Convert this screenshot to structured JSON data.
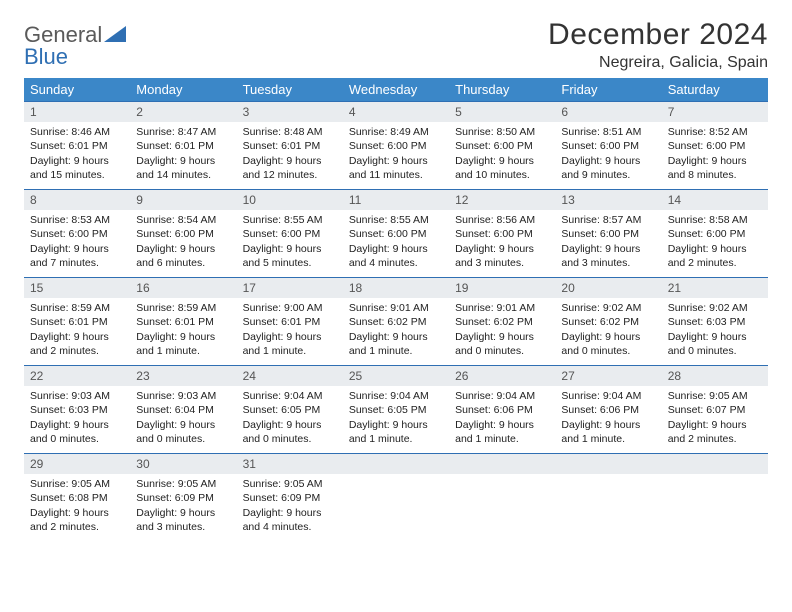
{
  "logo": {
    "general": "General",
    "blue": "Blue"
  },
  "title": {
    "month": "December 2024",
    "location": "Negreira, Galicia, Spain"
  },
  "colors": {
    "header_bg": "#3b87c8",
    "header_text": "#ffffff",
    "row_border": "#2f6fb3",
    "daynum_bg": "#e9ecef",
    "logo_gray": "#5a5a5a",
    "logo_blue": "#2f6fb3"
  },
  "day_headers": [
    "Sunday",
    "Monday",
    "Tuesday",
    "Wednesday",
    "Thursday",
    "Friday",
    "Saturday"
  ],
  "weeks": [
    [
      {
        "n": "1",
        "sr": "Sunrise: 8:46 AM",
        "ss": "Sunset: 6:01 PM",
        "dl": "Daylight: 9 hours and 15 minutes."
      },
      {
        "n": "2",
        "sr": "Sunrise: 8:47 AM",
        "ss": "Sunset: 6:01 PM",
        "dl": "Daylight: 9 hours and 14 minutes."
      },
      {
        "n": "3",
        "sr": "Sunrise: 8:48 AM",
        "ss": "Sunset: 6:01 PM",
        "dl": "Daylight: 9 hours and 12 minutes."
      },
      {
        "n": "4",
        "sr": "Sunrise: 8:49 AM",
        "ss": "Sunset: 6:00 PM",
        "dl": "Daylight: 9 hours and 11 minutes."
      },
      {
        "n": "5",
        "sr": "Sunrise: 8:50 AM",
        "ss": "Sunset: 6:00 PM",
        "dl": "Daylight: 9 hours and 10 minutes."
      },
      {
        "n": "6",
        "sr": "Sunrise: 8:51 AM",
        "ss": "Sunset: 6:00 PM",
        "dl": "Daylight: 9 hours and 9 minutes."
      },
      {
        "n": "7",
        "sr": "Sunrise: 8:52 AM",
        "ss": "Sunset: 6:00 PM",
        "dl": "Daylight: 9 hours and 8 minutes."
      }
    ],
    [
      {
        "n": "8",
        "sr": "Sunrise: 8:53 AM",
        "ss": "Sunset: 6:00 PM",
        "dl": "Daylight: 9 hours and 7 minutes."
      },
      {
        "n": "9",
        "sr": "Sunrise: 8:54 AM",
        "ss": "Sunset: 6:00 PM",
        "dl": "Daylight: 9 hours and 6 minutes."
      },
      {
        "n": "10",
        "sr": "Sunrise: 8:55 AM",
        "ss": "Sunset: 6:00 PM",
        "dl": "Daylight: 9 hours and 5 minutes."
      },
      {
        "n": "11",
        "sr": "Sunrise: 8:55 AM",
        "ss": "Sunset: 6:00 PM",
        "dl": "Daylight: 9 hours and 4 minutes."
      },
      {
        "n": "12",
        "sr": "Sunrise: 8:56 AM",
        "ss": "Sunset: 6:00 PM",
        "dl": "Daylight: 9 hours and 3 minutes."
      },
      {
        "n": "13",
        "sr": "Sunrise: 8:57 AM",
        "ss": "Sunset: 6:00 PM",
        "dl": "Daylight: 9 hours and 3 minutes."
      },
      {
        "n": "14",
        "sr": "Sunrise: 8:58 AM",
        "ss": "Sunset: 6:00 PM",
        "dl": "Daylight: 9 hours and 2 minutes."
      }
    ],
    [
      {
        "n": "15",
        "sr": "Sunrise: 8:59 AM",
        "ss": "Sunset: 6:01 PM",
        "dl": "Daylight: 9 hours and 2 minutes."
      },
      {
        "n": "16",
        "sr": "Sunrise: 8:59 AM",
        "ss": "Sunset: 6:01 PM",
        "dl": "Daylight: 9 hours and 1 minute."
      },
      {
        "n": "17",
        "sr": "Sunrise: 9:00 AM",
        "ss": "Sunset: 6:01 PM",
        "dl": "Daylight: 9 hours and 1 minute."
      },
      {
        "n": "18",
        "sr": "Sunrise: 9:01 AM",
        "ss": "Sunset: 6:02 PM",
        "dl": "Daylight: 9 hours and 1 minute."
      },
      {
        "n": "19",
        "sr": "Sunrise: 9:01 AM",
        "ss": "Sunset: 6:02 PM",
        "dl": "Daylight: 9 hours and 0 minutes."
      },
      {
        "n": "20",
        "sr": "Sunrise: 9:02 AM",
        "ss": "Sunset: 6:02 PM",
        "dl": "Daylight: 9 hours and 0 minutes."
      },
      {
        "n": "21",
        "sr": "Sunrise: 9:02 AM",
        "ss": "Sunset: 6:03 PM",
        "dl": "Daylight: 9 hours and 0 minutes."
      }
    ],
    [
      {
        "n": "22",
        "sr": "Sunrise: 9:03 AM",
        "ss": "Sunset: 6:03 PM",
        "dl": "Daylight: 9 hours and 0 minutes."
      },
      {
        "n": "23",
        "sr": "Sunrise: 9:03 AM",
        "ss": "Sunset: 6:04 PM",
        "dl": "Daylight: 9 hours and 0 minutes."
      },
      {
        "n": "24",
        "sr": "Sunrise: 9:04 AM",
        "ss": "Sunset: 6:05 PM",
        "dl": "Daylight: 9 hours and 0 minutes."
      },
      {
        "n": "25",
        "sr": "Sunrise: 9:04 AM",
        "ss": "Sunset: 6:05 PM",
        "dl": "Daylight: 9 hours and 1 minute."
      },
      {
        "n": "26",
        "sr": "Sunrise: 9:04 AM",
        "ss": "Sunset: 6:06 PM",
        "dl": "Daylight: 9 hours and 1 minute."
      },
      {
        "n": "27",
        "sr": "Sunrise: 9:04 AM",
        "ss": "Sunset: 6:06 PM",
        "dl": "Daylight: 9 hours and 1 minute."
      },
      {
        "n": "28",
        "sr": "Sunrise: 9:05 AM",
        "ss": "Sunset: 6:07 PM",
        "dl": "Daylight: 9 hours and 2 minutes."
      }
    ],
    [
      {
        "n": "29",
        "sr": "Sunrise: 9:05 AM",
        "ss": "Sunset: 6:08 PM",
        "dl": "Daylight: 9 hours and 2 minutes."
      },
      {
        "n": "30",
        "sr": "Sunrise: 9:05 AM",
        "ss": "Sunset: 6:09 PM",
        "dl": "Daylight: 9 hours and 3 minutes."
      },
      {
        "n": "31",
        "sr": "Sunrise: 9:05 AM",
        "ss": "Sunset: 6:09 PM",
        "dl": "Daylight: 9 hours and 4 minutes."
      },
      {
        "n": "",
        "sr": "",
        "ss": "",
        "dl": ""
      },
      {
        "n": "",
        "sr": "",
        "ss": "",
        "dl": ""
      },
      {
        "n": "",
        "sr": "",
        "ss": "",
        "dl": ""
      },
      {
        "n": "",
        "sr": "",
        "ss": "",
        "dl": ""
      }
    ]
  ]
}
